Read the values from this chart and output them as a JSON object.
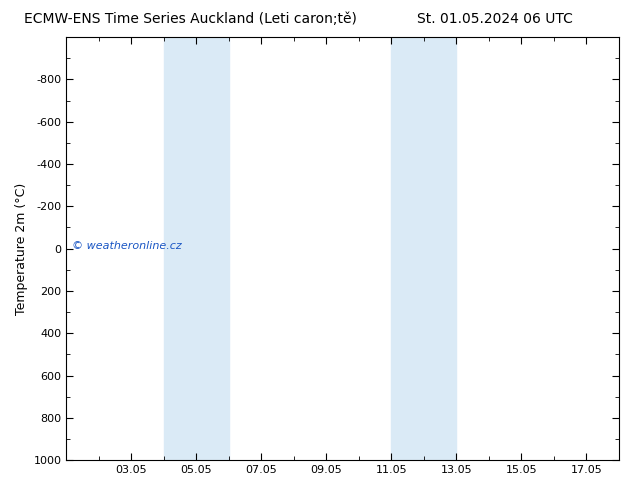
{
  "title_left": "ECMW-ENS Time Series Auckland (Leti caron;tě)",
  "title_right": "St. 01.05.2024 06 UTC",
  "ylabel": "Temperature 2m (°C)",
  "xtick_labels": [
    "03.05",
    "05.05",
    "07.05",
    "09.05",
    "11.05",
    "13.05",
    "15.05",
    "17.05"
  ],
  "xtick_positions": [
    3,
    5,
    7,
    9,
    11,
    13,
    15,
    17
  ],
  "ylim_top": -1000,
  "ylim_bottom": 1000,
  "ytick_positions": [
    -800,
    -600,
    -400,
    -200,
    0,
    200,
    400,
    600,
    800,
    1000
  ],
  "ytick_labels": [
    "-800",
    "-600",
    "-400",
    "-200",
    "0",
    "200",
    "400",
    "600",
    "800",
    "1000"
  ],
  "shaded_bands": [
    {
      "xmin": 4,
      "xmax": 6
    },
    {
      "xmin": 11,
      "xmax": 13
    }
  ],
  "shade_color": "#daeaf6",
  "background_color": "#ffffff",
  "plot_bg_color": "#ffffff",
  "watermark_text": "© weatheronline.cz",
  "watermark_color": "#1a56c4",
  "border_color": "#000000",
  "title_fontsize": 10,
  "label_fontsize": 9,
  "tick_fontsize": 8,
  "xmin": 1,
  "xmax": 18
}
